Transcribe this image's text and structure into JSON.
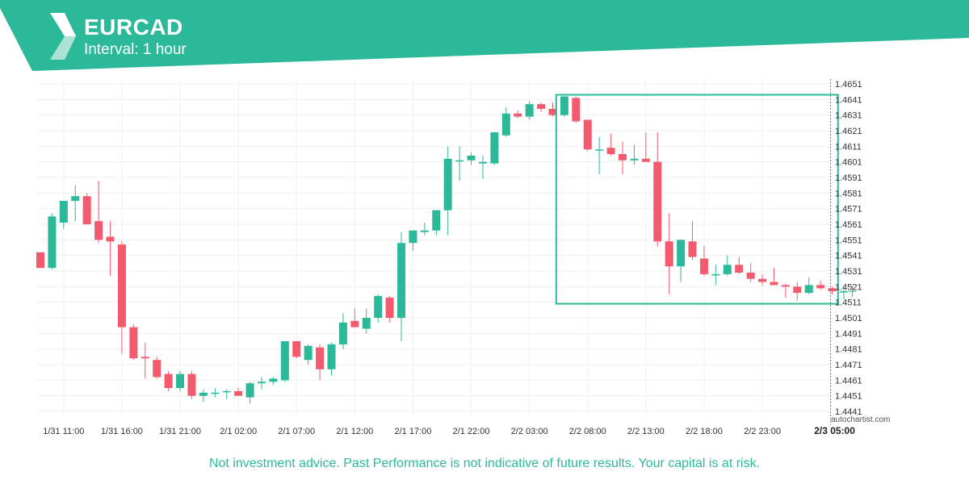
{
  "header": {
    "symbol": "EURCAD",
    "interval": "Interval: 1 hour"
  },
  "footer": {
    "disclaimer": "Not investment advice. Past Performance is not indicative of future results. Your capital is at risk.",
    "watermark": "autochartist.com"
  },
  "colors": {
    "accent": "#2bb99a",
    "bull": "#2bb99a",
    "bear": "#f45a6e",
    "grid": "#f0f0f0"
  },
  "chart_data": {
    "type": "candlestick",
    "ylim": [
      1.4441,
      1.4651
    ],
    "y_ticks": [
      "1.4651",
      "1.4641",
      "1.4631",
      "1.4621",
      "1.4611",
      "1.4601",
      "1.4591",
      "1.4581",
      "1.4571",
      "1.4561",
      "1.4551",
      "1.4541",
      "1.4531",
      "1.4521",
      "1.4511",
      "1.4501",
      "1.4491",
      "1.4481",
      "1.4471",
      "1.4461",
      "1.4451",
      "1.4441"
    ],
    "x_ticks": [
      {
        "label": "1/31 11:00",
        "index": 2
      },
      {
        "label": "1/31 16:00",
        "index": 7
      },
      {
        "label": "1/31 21:00",
        "index": 12
      },
      {
        "label": "2/1 02:00",
        "index": 17
      },
      {
        "label": "2/1 07:00",
        "index": 22
      },
      {
        "label": "2/1 12:00",
        "index": 27
      },
      {
        "label": "2/1 17:00",
        "index": 32
      },
      {
        "label": "2/1 22:00",
        "index": 37
      },
      {
        "label": "2/2 03:00",
        "index": 42
      },
      {
        "label": "2/2 08:00",
        "index": 47
      },
      {
        "label": "2/2 13:00",
        "index": 52
      },
      {
        "label": "2/2 18:00",
        "index": 57
      },
      {
        "label": "2/2 23:00",
        "index": 62
      },
      {
        "label": "2/3 05:00",
        "index": 68
      }
    ],
    "highlight_x_label": "2/3 05:00",
    "pattern_box": {
      "start_index": 44.3,
      "end_index": 68.5,
      "top": 1.4643,
      "bottom": 1.451
    },
    "now_index": 68,
    "candles": [
      {
        "o": 1.4543,
        "h": 1.4543,
        "l": 1.4533,
        "c": 1.4533
      },
      {
        "o": 1.4533,
        "h": 1.4568,
        "l": 1.4532,
        "c": 1.4566
      },
      {
        "o": 1.4562,
        "h": 1.4576,
        "l": 1.4558,
        "c": 1.4576
      },
      {
        "o": 1.4576,
        "h": 1.4586,
        "l": 1.4563,
        "c": 1.4579
      },
      {
        "o": 1.4579,
        "h": 1.4581,
        "l": 1.4561,
        "c": 1.4561
      },
      {
        "o": 1.4563,
        "h": 1.4589,
        "l": 1.4549,
        "c": 1.4551
      },
      {
        "o": 1.4553,
        "h": 1.4563,
        "l": 1.4528,
        "c": 1.455
      },
      {
        "o": 1.4548,
        "h": 1.455,
        "l": 1.4478,
        "c": 1.4495
      },
      {
        "o": 1.4495,
        "h": 1.4497,
        "l": 1.4474,
        "c": 1.4475
      },
      {
        "o": 1.4476,
        "h": 1.4485,
        "l": 1.4462,
        "c": 1.4475
      },
      {
        "o": 1.4474,
        "h": 1.4476,
        "l": 1.4462,
        "c": 1.4463
      },
      {
        "o": 1.4465,
        "h": 1.4467,
        "l": 1.4454,
        "c": 1.4456
      },
      {
        "o": 1.4456,
        "h": 1.4467,
        "l": 1.4454,
        "c": 1.4465
      },
      {
        "o": 1.4465,
        "h": 1.4467,
        "l": 1.4449,
        "c": 1.4451
      },
      {
        "o": 1.4451,
        "h": 1.4455,
        "l": 1.4447,
        "c": 1.4453
      },
      {
        "o": 1.4453,
        "h": 1.4456,
        "l": 1.445,
        "c": 1.4453
      },
      {
        "o": 1.4454,
        "h": 1.4455,
        "l": 1.4449,
        "c": 1.4454
      },
      {
        "o": 1.4454,
        "h": 1.4456,
        "l": 1.4451,
        "c": 1.4451
      },
      {
        "o": 1.445,
        "h": 1.446,
        "l": 1.4446,
        "c": 1.4459
      },
      {
        "o": 1.4459,
        "h": 1.4463,
        "l": 1.4455,
        "c": 1.446
      },
      {
        "o": 1.446,
        "h": 1.4463,
        "l": 1.4458,
        "c": 1.4462
      },
      {
        "o": 1.4461,
        "h": 1.4486,
        "l": 1.446,
        "c": 1.4486
      },
      {
        "o": 1.4486,
        "h": 1.4486,
        "l": 1.4475,
        "c": 1.4476
      },
      {
        "o": 1.4474,
        "h": 1.4484,
        "l": 1.4471,
        "c": 1.4483
      },
      {
        "o": 1.4482,
        "h": 1.4484,
        "l": 1.4461,
        "c": 1.4468
      },
      {
        "o": 1.4468,
        "h": 1.4485,
        "l": 1.4464,
        "c": 1.4484
      },
      {
        "o": 1.4484,
        "h": 1.4504,
        "l": 1.4481,
        "c": 1.4498
      },
      {
        "o": 1.4499,
        "h": 1.4507,
        "l": 1.4495,
        "c": 1.4495
      },
      {
        "o": 1.4494,
        "h": 1.4507,
        "l": 1.4491,
        "c": 1.4501
      },
      {
        "o": 1.4501,
        "h": 1.4516,
        "l": 1.4498,
        "c": 1.4515
      },
      {
        "o": 1.4514,
        "h": 1.4515,
        "l": 1.4498,
        "c": 1.4501
      },
      {
        "o": 1.4501,
        "h": 1.4556,
        "l": 1.4486,
        "c": 1.4549
      },
      {
        "o": 1.4549,
        "h": 1.4557,
        "l": 1.4544,
        "c": 1.4557
      },
      {
        "o": 1.4556,
        "h": 1.4562,
        "l": 1.4554,
        "c": 1.4557
      },
      {
        "o": 1.4557,
        "h": 1.457,
        "l": 1.4554,
        "c": 1.457
      },
      {
        "o": 1.457,
        "h": 1.4611,
        "l": 1.4554,
        "c": 1.4603
      },
      {
        "o": 1.4602,
        "h": 1.4611,
        "l": 1.4589,
        "c": 1.4602
      },
      {
        "o": 1.4602,
        "h": 1.4607,
        "l": 1.4599,
        "c": 1.4605
      },
      {
        "o": 1.46,
        "h": 1.4605,
        "l": 1.459,
        "c": 1.4601
      },
      {
        "o": 1.46,
        "h": 1.462,
        "l": 1.4599,
        "c": 1.462
      },
      {
        "o": 1.4618,
        "h": 1.4636,
        "l": 1.4617,
        "c": 1.4632
      },
      {
        "o": 1.4632,
        "h": 1.4634,
        "l": 1.4629,
        "c": 1.463
      },
      {
        "o": 1.463,
        "h": 1.464,
        "l": 1.4628,
        "c": 1.4638
      },
      {
        "o": 1.4638,
        "h": 1.4639,
        "l": 1.4633,
        "c": 1.4635
      },
      {
        "o": 1.4635,
        "h": 1.4639,
        "l": 1.463,
        "c": 1.4631
      },
      {
        "o": 1.4631,
        "h": 1.4643,
        "l": 1.463,
        "c": 1.4643
      },
      {
        "o": 1.4642,
        "h": 1.4643,
        "l": 1.4626,
        "c": 1.4627
      },
      {
        "o": 1.4628,
        "h": 1.4628,
        "l": 1.4608,
        "c": 1.4609
      },
      {
        "o": 1.4609,
        "h": 1.4617,
        "l": 1.4593,
        "c": 1.4609
      },
      {
        "o": 1.461,
        "h": 1.4619,
        "l": 1.4605,
        "c": 1.4606
      },
      {
        "o": 1.4606,
        "h": 1.4614,
        "l": 1.4593,
        "c": 1.4602
      },
      {
        "o": 1.4602,
        "h": 1.4612,
        "l": 1.4599,
        "c": 1.4603
      },
      {
        "o": 1.4603,
        "h": 1.462,
        "l": 1.4601,
        "c": 1.4601
      },
      {
        "o": 1.4601,
        "h": 1.462,
        "l": 1.4547,
        "c": 1.455
      },
      {
        "o": 1.455,
        "h": 1.4568,
        "l": 1.4516,
        "c": 1.4534
      },
      {
        "o": 1.4534,
        "h": 1.4551,
        "l": 1.4524,
        "c": 1.4551
      },
      {
        "o": 1.455,
        "h": 1.4563,
        "l": 1.4538,
        "c": 1.454
      },
      {
        "o": 1.4539,
        "h": 1.4547,
        "l": 1.4528,
        "c": 1.4529
      },
      {
        "o": 1.4529,
        "h": 1.4535,
        "l": 1.4522,
        "c": 1.4529
      },
      {
        "o": 1.4529,
        "h": 1.4541,
        "l": 1.4528,
        "c": 1.4535
      },
      {
        "o": 1.4535,
        "h": 1.454,
        "l": 1.4529,
        "c": 1.453
      },
      {
        "o": 1.453,
        "h": 1.4536,
        "l": 1.4524,
        "c": 1.4526
      },
      {
        "o": 1.4526,
        "h": 1.4529,
        "l": 1.4522,
        "c": 1.4524
      },
      {
        "o": 1.4524,
        "h": 1.4533,
        "l": 1.4522,
        "c": 1.4522
      },
      {
        "o": 1.4522,
        "h": 1.4523,
        "l": 1.4514,
        "c": 1.4521
      },
      {
        "o": 1.4521,
        "h": 1.4524,
        "l": 1.4512,
        "c": 1.4517
      },
      {
        "o": 1.4517,
        "h": 1.4527,
        "l": 1.4516,
        "c": 1.4522
      },
      {
        "o": 1.4522,
        "h": 1.4525,
        "l": 1.4519,
        "c": 1.452
      },
      {
        "o": 1.452,
        "h": 1.4521,
        "l": 1.4516,
        "c": 1.4518
      },
      {
        "o": 1.4518,
        "h": 1.4521,
        "l": 1.4513,
        "c": 1.4518
      }
    ]
  }
}
